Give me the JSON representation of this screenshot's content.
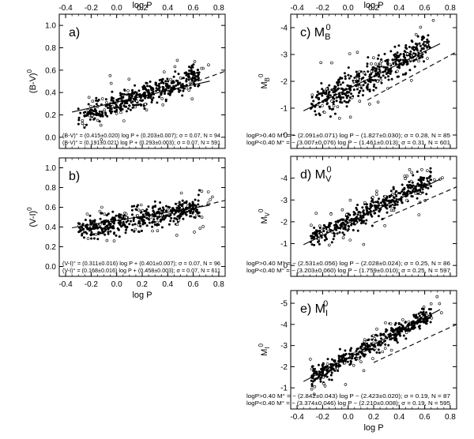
{
  "chart_data": [
    {
      "id": "a",
      "type": "scatter",
      "panel_label": "a)",
      "ylabel": "(B-V)",
      "ylabel_sup": "0",
      "xlabel": "",
      "top_xlabel": "log P",
      "xlim": [
        -0.45,
        0.85
      ],
      "ylim": [
        -0.1,
        1.1
      ],
      "y_inverted": false,
      "xticks": [
        "-0.4",
        "-0.2",
        "0.0",
        "0.2",
        "0.4",
        "0.6",
        "0.8"
      ],
      "yticks": [
        "0.0",
        "0.2",
        "0.4",
        "0.6",
        "0.8",
        "1.0"
      ],
      "cloud": {
        "slope": 0.4,
        "intercept": 0.29,
        "scatter": 0.07,
        "n_filled": 420,
        "n_open": 45,
        "seed": 11
      },
      "lines": [
        {
          "style": "solid",
          "x": [
            -0.35,
            0.73
          ],
          "y": [
            0.225,
            0.502
          ]
        },
        {
          "style": "dashed",
          "x": [
            0.4,
            0.85
          ],
          "y": [
            0.406,
            0.59
          ]
        }
      ],
      "annotations": [
        {
          "prefix": "",
          "text": "(B-V)° = (0.415±0.020) log P + (0.203±0.007); σ = 0.07, N = 94"
        },
        {
          "prefix": "",
          "text": "(B-V)° = (0.191±0.021) log P + (0.293±0.003); σ = 0.07, N = 591"
        }
      ]
    },
    {
      "id": "b",
      "type": "scatter",
      "panel_label": "b)",
      "ylabel": "(V-I)",
      "ylabel_sup": "0",
      "xlabel": "log P",
      "top_xlabel": "",
      "xlim": [
        -0.45,
        0.85
      ],
      "ylim": [
        -0.1,
        1.1
      ],
      "y_inverted": false,
      "xticks": [
        "-0.4",
        "-0.2",
        "0.0",
        "0.2",
        "0.4",
        "0.6",
        "0.8"
      ],
      "yticks": [
        "0.0",
        "0.2",
        "0.4",
        "0.6",
        "0.8",
        "1.0"
      ],
      "cloud": {
        "slope": 0.25,
        "intercept": 0.44,
        "scatter": 0.08,
        "n_filled": 420,
        "n_open": 45,
        "seed": 23
      },
      "lines": [
        {
          "style": "solid",
          "x": [
            -0.35,
            0.73
          ],
          "y": [
            0.392,
            0.62
          ]
        },
        {
          "style": "dashed",
          "x": [
            0.4,
            0.85
          ],
          "y": [
            0.53,
            0.67
          ]
        }
      ],
      "annotations": [
        {
          "prefix": "",
          "text": "(V-I)° = (0.311±0.016) log P + (0.401±0.007); σ = 0.07, N = 96"
        },
        {
          "prefix": "",
          "text": "(V-I)° = (0.168±0.016) log P + (0.458±0.003); σ = 0.07, N = 611"
        }
      ]
    },
    {
      "id": "c",
      "type": "scatter",
      "panel_label": "c)",
      "mag_symbol": "M",
      "mag_sub": "B",
      "mag_sup": "0",
      "ylabel": "M",
      "ylabel_sub": "B",
      "ylabel_sup": "0",
      "xlabel": "",
      "top_xlabel": "log P",
      "xlim": [
        -0.45,
        0.85
      ],
      "ylim": [
        0.5,
        -4.5
      ],
      "y_inverted": true,
      "xticks": [
        "-0.4",
        "-0.2",
        "0.0",
        "0.2",
        "0.4",
        "0.6",
        "0.8"
      ],
      "yticks": [
        "0",
        "-1",
        "-2",
        "-3",
        "-4"
      ],
      "cloud": {
        "slope": -2.5,
        "intercept": -1.75,
        "scatter": 0.4,
        "n_filled": 420,
        "n_open": 50,
        "seed": 37
      },
      "lines": [
        {
          "style": "solid",
          "x": [
            -0.35,
            0.72
          ],
          "y": [
            -0.9,
            -3.4
          ]
        },
        {
          "style": "dashed",
          "x": [
            0.15,
            0.85
          ],
          "y": [
            -1.3,
            -3.1
          ]
        }
      ],
      "annotations": [
        {
          "prefix": "logP>0.40",
          "text": "M° = − (2.091±0.071) log P − (1.827±0.030); σ = 0.28, N = 85"
        },
        {
          "prefix": "logP<0.40",
          "text": "M° = − (3.007±0.076) log P − (1.461±0.013); σ = 0.31, N = 601"
        }
      ]
    },
    {
      "id": "d",
      "type": "scatter",
      "panel_label": "d)",
      "mag_symbol": "M",
      "mag_sub": "V",
      "mag_sup": "0",
      "ylabel": "M",
      "ylabel_sub": "V",
      "ylabel_sup": "0",
      "xlabel": "",
      "top_xlabel": "",
      "xlim": [
        -0.45,
        0.85
      ],
      "ylim": [
        0.5,
        -5.0
      ],
      "y_inverted": true,
      "xticks": [
        "-0.4",
        "-0.2",
        "0.0",
        "0.2",
        "0.4",
        "0.6",
        "0.8"
      ],
      "yticks": [
        "0",
        "-1",
        "-2",
        "-3",
        "-4"
      ],
      "cloud": {
        "slope": -2.9,
        "intercept": -2.05,
        "scatter": 0.35,
        "n_filled": 420,
        "n_open": 50,
        "seed": 51
      },
      "lines": [
        {
          "style": "solid",
          "x": [
            -0.35,
            0.72
          ],
          "y": [
            -0.95,
            -3.95
          ]
        },
        {
          "style": "dashed",
          "x": [
            0.2,
            0.85
          ],
          "y": [
            -1.95,
            -3.6
          ]
        }
      ],
      "annotations": [
        {
          "prefix": "logP>0.40",
          "text": "M° = − (2.531±0.056) log P − (2.028±0.024); σ = 0.25, N = 86"
        },
        {
          "prefix": "logP<0.40",
          "text": "M° = − (3.203±0.060) log P − (1.759±0.010); σ = 0.25, N = 597"
        }
      ]
    },
    {
      "id": "e",
      "type": "scatter",
      "panel_label": "e)",
      "mag_symbol": "M",
      "mag_sub": "I",
      "mag_sup": "0",
      "ylabel": "M",
      "ylabel_sub": "I",
      "ylabel_sup": "0",
      "xlabel": "log P",
      "top_xlabel": "",
      "xlim": [
        -0.45,
        0.85
      ],
      "ylim": [
        0.0,
        -5.6
      ],
      "y_inverted": true,
      "xticks": [
        "-0.4",
        "-0.2",
        "0.0",
        "0.2",
        "0.4",
        "0.6",
        "0.8"
      ],
      "yticks": [
        "-1",
        "-2",
        "-3",
        "-4",
        "-5"
      ],
      "cloud": {
        "slope": -3.2,
        "intercept": -2.4,
        "scatter": 0.3,
        "n_filled": 420,
        "n_open": 50,
        "seed": 67
      },
      "lines": [
        {
          "style": "solid",
          "x": [
            -0.35,
            0.72
          ],
          "y": [
            -1.3,
            -4.7
          ]
        },
        {
          "style": "dashed",
          "x": [
            0.2,
            0.85
          ],
          "y": [
            -2.2,
            -4.0
          ]
        }
      ],
      "annotations": [
        {
          "prefix": "logP>0.40",
          "text": "M° = − (2.842±0.043) log P − (2.423±0.020); σ = 0.19, N = 87"
        },
        {
          "prefix": "logP<0.40",
          "text": "M° = − (3.374±0.046) log P − (2.210±0.008); σ = 0.19, N = 595"
        }
      ]
    }
  ]
}
